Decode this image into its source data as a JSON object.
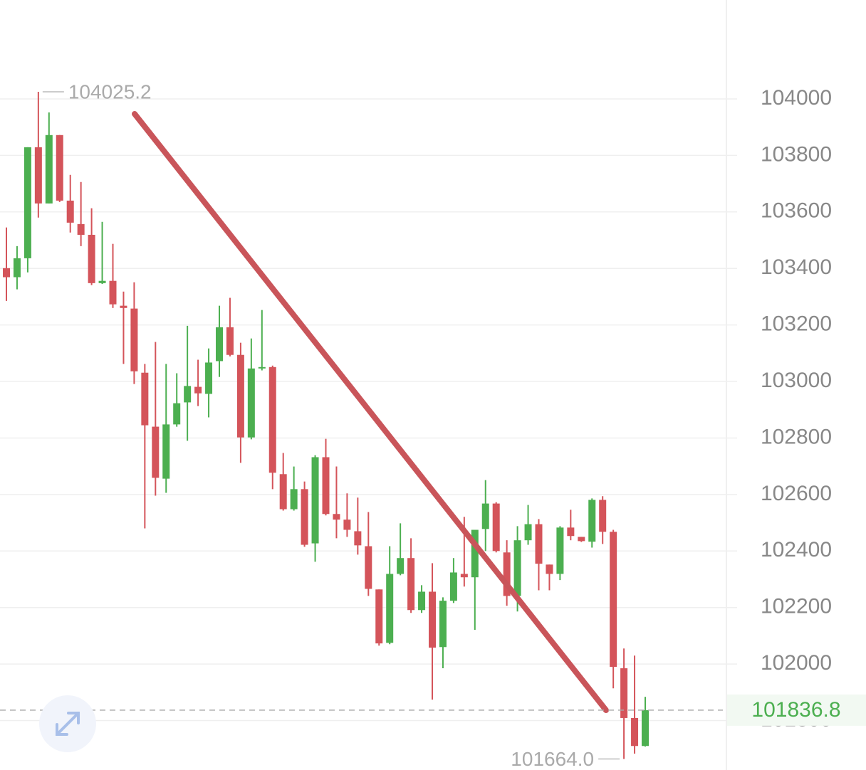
{
  "chart_data": {
    "type": "candlestick",
    "up_color": "#4caf50",
    "down_color": "#d4545a",
    "open": [
      103401,
      103369,
      103436,
      103829,
      103630,
      103872,
      103640,
      103557,
      103519,
      103348,
      103356,
      103268,
      103258,
      103031,
      102840,
      102656,
      102848,
      102926,
      102981,
      102956,
      103072,
      103192,
      103094,
      102802,
      103046,
      103051,
      102672,
      102548,
      102619,
      102427,
      102732,
      102531,
      102511,
      102470,
      102417,
      102264,
      102075,
      102319,
      102375,
      102191,
      102256,
      102060,
      102224,
      102319,
      102307,
      102478,
      102568,
      102395,
      102241,
      102438,
      102495,
      102352,
      102319,
      102483,
      102450,
      102433,
      102581,
      102468,
      101985,
      101809,
      101710
    ],
    "high": [
      103545,
      103479,
      103829,
      104025.2,
      103952,
      103872,
      103731,
      103706,
      103613,
      103565,
      103487,
      103318,
      103351,
      103062,
      103140,
      103062,
      103029,
      103197,
      103077,
      103117,
      103268,
      103296,
      103137,
      103152,
      103253,
      103056,
      102747,
      102699,
      102646,
      102739,
      102797,
      102699,
      102604,
      102589,
      102538,
      102264,
      102417,
      102498,
      102445,
      102279,
      102357,
      102236,
      102375,
      102521,
      102475,
      102651,
      102573,
      102438,
      102488,
      102563,
      102513,
      102352,
      102488,
      102546,
      102450,
      102586,
      102594,
      102475,
      102055,
      102030,
      101884
    ],
    "low": [
      103285,
      103326,
      103386,
      103580,
      103630,
      103635,
      103527,
      103479,
      103341,
      103345,
      103260,
      103062,
      102991,
      102480,
      102596,
      102606,
      102840,
      102790,
      102913,
      102873,
      103016,
      103089,
      102712,
      102795,
      103039,
      102619,
      102543,
      102543,
      102415,
      102362,
      102526,
      102445,
      102450,
      102387,
      102241,
      102065,
      102070,
      102314,
      102181,
      102181,
      101874,
      101985,
      102216,
      102274,
      102121,
      102400,
      102395,
      102206,
      102186,
      102422,
      102261,
      102261,
      102297,
      102438,
      102432,
      102412,
      102425,
      101914,
      101664,
      101683,
      101708
    ],
    "close": [
      103369,
      103436,
      103829,
      103630,
      103872,
      103640,
      103562,
      103519,
      103348,
      103356,
      103273,
      103260,
      103036,
      102845,
      102659,
      102848,
      102923,
      102984,
      102958,
      103067,
      103192,
      103094,
      102802,
      103046,
      103051,
      102677,
      102548,
      102619,
      102422,
      102732,
      102531,
      102511,
      102475,
      102420,
      102266,
      102073,
      102319,
      102375,
      102191,
      102256,
      102058,
      102224,
      102324,
      102307,
      102475,
      102568,
      102400,
      102241,
      102438,
      102495,
      102355,
      102319,
      102483,
      102453,
      102435,
      102581,
      102468,
      101990,
      101809,
      101710,
      101836.8
    ],
    "max_label": 104025.2,
    "min_label": {
      "value": 101664,
      "label": "101664.0"
    },
    "last_price": 101836.8,
    "ylim": [
      101625,
      104350
    ],
    "yticks": [
      104000,
      103800,
      103600,
      103400,
      103200,
      103000,
      102800,
      102600,
      102400,
      102200,
      102000,
      101800
    ],
    "grid": true
  }
}
